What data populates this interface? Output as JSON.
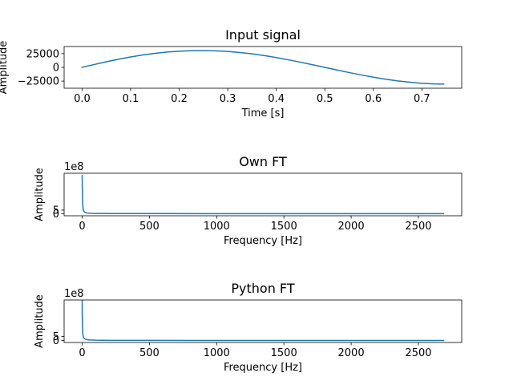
{
  "figure": {
    "background": "#ffffff",
    "line_color": "#1f77b4"
  },
  "chart_data": [
    {
      "type": "line",
      "title": "Input signal",
      "xlabel": "Time [s]",
      "ylabel": "Amplitude",
      "xlim": [
        -0.037,
        0.782
      ],
      "ylim": [
        -38000,
        38000
      ],
      "xticks": [
        0.0,
        0.1,
        0.2,
        0.3,
        0.4,
        0.5,
        0.6,
        0.7
      ],
      "xtick_labels": [
        "0.0",
        "0.1",
        "0.2",
        "0.3",
        "0.4",
        "0.5",
        "0.6",
        "0.7"
      ],
      "yticks": [
        -25000,
        0,
        25000
      ],
      "ytick_labels": [
        "−25000",
        "0",
        "25000"
      ],
      "y_offset_text": "",
      "grid": false,
      "series": [
        {
          "x": [
            0.0,
            0.025,
            0.05,
            0.075,
            0.1,
            0.125,
            0.15,
            0.175,
            0.2,
            0.225,
            0.25,
            0.275,
            0.3,
            0.325,
            0.35,
            0.375,
            0.4,
            0.425,
            0.45,
            0.475,
            0.5,
            0.525,
            0.55,
            0.575,
            0.6,
            0.625,
            0.65,
            0.675,
            0.7,
            0.725,
            0.745
          ],
          "y": [
            0,
            5200,
            10200,
            14800,
            19000,
            22600,
            25600,
            27900,
            29500,
            30300,
            30500,
            30100,
            29000,
            27100,
            24600,
            21500,
            17900,
            13800,
            9400,
            4700,
            0,
            -4700,
            -9400,
            -13800,
            -17900,
            -21500,
            -24600,
            -27100,
            -29000,
            -30100,
            -30500
          ]
        }
      ]
    },
    {
      "type": "line",
      "title": "Own FT",
      "xlabel": "Frequency [Hz]",
      "ylabel": "Amplitude",
      "xlim": [
        -134,
        2822
      ],
      "ylim": [
        -3,
        57
      ],
      "xticks": [
        0,
        500,
        1000,
        1500,
        2000,
        2500
      ],
      "xtick_labels": [
        "0",
        "500",
        "1000",
        "1500",
        "2000",
        "2500"
      ],
      "yticks": [
        0,
        5
      ],
      "ytick_labels": [
        "0",
        "5"
      ],
      "y_offset_text": "1e8",
      "grid": false,
      "series": [
        {
          "x": [
            0,
            1,
            2,
            4,
            6,
            8,
            10,
            13,
            16,
            20,
            25,
            30,
            40,
            50,
            60,
            70,
            80,
            100,
            150,
            200,
            300,
            500,
            1000,
            1500,
            2000,
            2500,
            2688
          ],
          "y": [
            54,
            40,
            28,
            15,
            9,
            6,
            4.5,
            3.5,
            2.8,
            2.1,
            1.6,
            1.2,
            0.9,
            0.7,
            0.5,
            0.5,
            0.4,
            0.3,
            0.2,
            0.15,
            0.1,
            0.05,
            0.02,
            0.02,
            0.01,
            0.01,
            0.01
          ]
        }
      ]
    },
    {
      "type": "line",
      "title": "Python FT",
      "xlabel": "Frequency [Hz]",
      "ylabel": "Amplitude",
      "xlim": [
        -134,
        2822
      ],
      "ylim": [
        -2.5,
        50
      ],
      "xticks": [
        0,
        500,
        1000,
        1500,
        2000,
        2500
      ],
      "xtick_labels": [
        "0",
        "500",
        "1000",
        "1500",
        "2000",
        "2500"
      ],
      "yticks": [
        0,
        5
      ],
      "ytick_labels": [
        "0",
        "5"
      ],
      "y_offset_text": "1e8",
      "grid": false,
      "series": [
        {
          "x": [
            0,
            1,
            2,
            3,
            5,
            8,
            12,
            18,
            25,
            40,
            60,
            100,
            200,
            500,
            1000,
            1500,
            2000,
            2500,
            2688
          ],
          "y": [
            49,
            30,
            20,
            14,
            8,
            5,
            3.2,
            2.2,
            1.5,
            0.9,
            0.6,
            0.35,
            0.15,
            0.05,
            0.02,
            0.01,
            0.01,
            0.01,
            0.01
          ]
        }
      ]
    }
  ]
}
